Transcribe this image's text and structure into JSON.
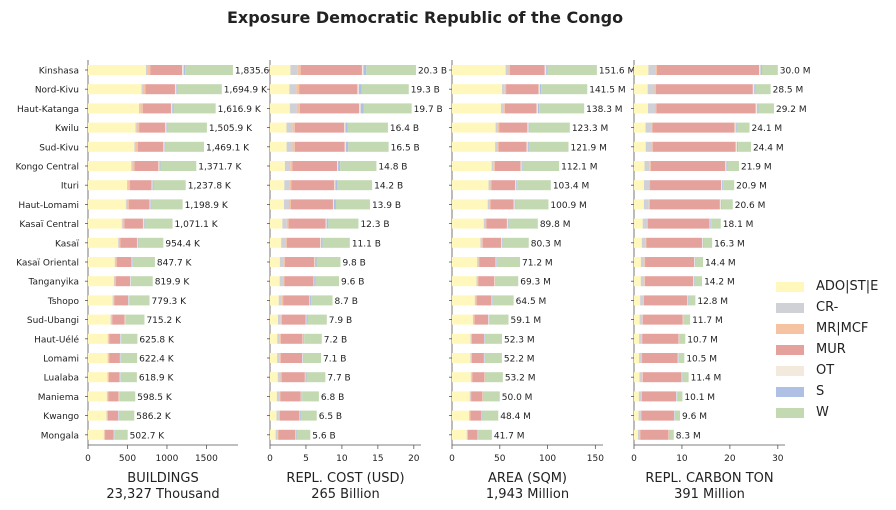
{
  "title": "Exposure Democratic Republic of the Congo",
  "legend": [
    {
      "label": "ADO|ST|E",
      "color": "#fff7bc"
    },
    {
      "label": "CR-",
      "color": "#d0d1d6"
    },
    {
      "label": "MR|MCF",
      "color": "#f5c3a2"
    },
    {
      "label": "MUR",
      "color": "#e5a19c"
    },
    {
      "label": "OT",
      "color": "#f3e9dc"
    },
    {
      "label": "S",
      "color": "#aec1e4"
    },
    {
      "label": "W",
      "color": "#c3d9b2"
    }
  ],
  "chart_data": [
    {
      "type": "bar",
      "orientation": "horizontal",
      "stacked": true,
      "categories": [
        "Kinshasa",
        "Nord-Kivu",
        "Haut-Katanga",
        "Kwilu",
        "Sud-Kivu",
        "Kongo Central",
        "Ituri",
        "Haut-Lomami",
        "Kasaï Central",
        "Kasaï",
        "Kasaï Oriental",
        "Tanganyika",
        "Tshopo",
        "Sud-Ubangi",
        "Haut-Uélé",
        "Lomami",
        "Lualaba",
        "Maniema",
        "Kwango",
        "Mongala"
      ],
      "xlabel": "BUILDINGS",
      "subtitle": "23,327 Thousand",
      "xticks": [
        "0",
        "500",
        "1000",
        "1500"
      ],
      "xlim": [
        0,
        1900
      ],
      "totals": [
        1835.6,
        1694.9,
        1616.9,
        1505.9,
        1469.1,
        1371.7,
        1237.8,
        1198.9,
        1071.1,
        954.4,
        847.7,
        819.9,
        779.3,
        715.2,
        625.8,
        622.4,
        618.9,
        598.5,
        586.2,
        502.7
      ],
      "total_labels": [
        "1,835.6",
        "1,694.9 K",
        "1,616.9 K",
        "1,505.9 K",
        "1,469.1 K",
        "1,371.7 K",
        "1,237.8 K",
        "1,198.9 K",
        "1,071.1 K",
        "954.4 K",
        "847.7 K",
        "819.9 K",
        "779.3 K",
        "715.2 K",
        "625.8 K",
        "622.4 K",
        "618.9 K",
        "598.5 K",
        "586.2 K",
        "502.7 K"
      ],
      "shares": {
        "ADO|ST|E": 0.4,
        "CR-": 0.01,
        "MR|MCF": 0.02,
        "MUR": 0.22,
        "OT": 0.01,
        "S": 0.01,
        "W": 0.33
      }
    },
    {
      "type": "bar",
      "orientation": "horizontal",
      "stacked": true,
      "categories": [
        "Kinshasa",
        "Nord-Kivu",
        "Haut-Katanga",
        "Kwilu",
        "Sud-Kivu",
        "Kongo Central",
        "Ituri",
        "Haut-Lomami",
        "Kasaï Central",
        "Kasaï",
        "Kasaï Oriental",
        "Tanganyika",
        "Tshopo",
        "Sud-Ubangi",
        "Haut-Uélé",
        "Lomami",
        "Lualaba",
        "Maniema",
        "Kwango",
        "Mongala"
      ],
      "xlabel": "REPL. COST (USD)",
      "subtitle": "265 Billion",
      "xticks": [
        "0",
        "5",
        "10",
        "15",
        "20"
      ],
      "xlim": [
        0,
        21
      ],
      "totals": [
        20.3,
        19.3,
        19.7,
        16.4,
        16.5,
        14.8,
        14.2,
        13.9,
        12.3,
        11.1,
        9.8,
        9.6,
        8.7,
        7.9,
        7.2,
        7.1,
        7.7,
        6.8,
        6.5,
        5.6
      ],
      "total_labels": [
        "20.3 B",
        "19.3 B",
        "19.7 B",
        "16.4 B",
        "16.5 B",
        "14.8 B",
        "14.2 B",
        "13.9 B",
        "12.3 B",
        "11.1 B",
        "9.8 B",
        "9.6 B",
        "8.7 B",
        "7.9 B",
        "7.2 B",
        "7.1 B",
        "7.7 B",
        "6.8 B",
        "6.5 B",
        "5.6 B"
      ],
      "shares": {
        "ADO|ST|E": 0.14,
        "CR-": 0.05,
        "MR|MCF": 0.02,
        "MUR": 0.42,
        "OT": 0.01,
        "S": 0.02,
        "W": 0.34
      }
    },
    {
      "type": "bar",
      "orientation": "horizontal",
      "stacked": true,
      "categories": [
        "Kinshasa",
        "Nord-Kivu",
        "Haut-Katanga",
        "Kwilu",
        "Sud-Kivu",
        "Kongo Central",
        "Ituri",
        "Haut-Lomami",
        "Kasaï Central",
        "Kasaï",
        "Kasaï Oriental",
        "Tanganyika",
        "Tshopo",
        "Sud-Ubangi",
        "Haut-Uélé",
        "Lomami",
        "Lualaba",
        "Maniema",
        "Kwango",
        "Mongala"
      ],
      "xlabel": "AREA (SQM)",
      "subtitle": "1,943 Million",
      "xticks": [
        "0",
        "50",
        "100",
        "150"
      ],
      "xlim": [
        0,
        158
      ],
      "totals": [
        151.6,
        141.5,
        138.3,
        123.3,
        121.9,
        112.1,
        103.4,
        100.9,
        89.8,
        80.3,
        71.2,
        69.3,
        64.5,
        59.1,
        52.3,
        52.2,
        53.2,
        50.0,
        48.4,
        41.7
      ],
      "total_labels": [
        "151.6 M",
        "141.5 M",
        "138.3 M",
        "123.3 M",
        "121.9 M",
        "112.1 M",
        "103.4 M",
        "100.9 M",
        "89.8 M",
        "80.3 M",
        "71.2 M",
        "69.3 M",
        "64.5 M",
        "59.1 M",
        "52.3 M",
        "52.2 M",
        "53.2 M",
        "50.0 M",
        "48.4 M",
        "41.7 M"
      ],
      "shares": {
        "ADO|ST|E": 0.37,
        "CR-": 0.02,
        "MR|MCF": 0.01,
        "MUR": 0.24,
        "OT": 0.01,
        "S": 0.01,
        "W": 0.34
      }
    },
    {
      "type": "bar",
      "orientation": "horizontal",
      "stacked": true,
      "categories": [
        "Kinshasa",
        "Nord-Kivu",
        "Haut-Katanga",
        "Kwilu",
        "Sud-Kivu",
        "Kongo Central",
        "Ituri",
        "Haut-Lomami",
        "Kasaï Central",
        "Kasaï",
        "Kasaï Oriental",
        "Tanganyika",
        "Tshopo",
        "Sud-Ubangi",
        "Haut-Uélé",
        "Lomami",
        "Lualaba",
        "Maniema",
        "Kwango",
        "Mongala"
      ],
      "xlabel": "REPL. CARBON TON",
      "subtitle": "391 Million",
      "xticks": [
        "0",
        "10",
        "20",
        "30"
      ],
      "xlim": [
        0,
        31.5
      ],
      "totals": [
        30.0,
        28.5,
        29.2,
        24.1,
        24.4,
        21.9,
        20.9,
        20.6,
        18.1,
        16.3,
        14.4,
        14.2,
        12.8,
        11.7,
        10.7,
        10.5,
        11.4,
        10.1,
        9.6,
        8.3
      ],
      "total_labels": [
        "30.0 M",
        "28.5 M",
        "29.2 M",
        "24.1 M",
        "24.4 M",
        "21.9 M",
        "20.9 M",
        "20.6 M",
        "18.1 M",
        "16.3 M",
        "14.4 M",
        "14.2 M",
        "12.8 M",
        "11.7 M",
        "10.7 M",
        "10.5 M",
        "11.4 M",
        "10.1 M",
        "9.6 M",
        "8.3 M"
      ],
      "shares": {
        "ADO|ST|E": 0.1,
        "CR-": 0.05,
        "MR|MCF": 0.01,
        "MUR": 0.71,
        "OT": 0.01,
        "S": 0.01,
        "W": 0.11
      }
    }
  ]
}
